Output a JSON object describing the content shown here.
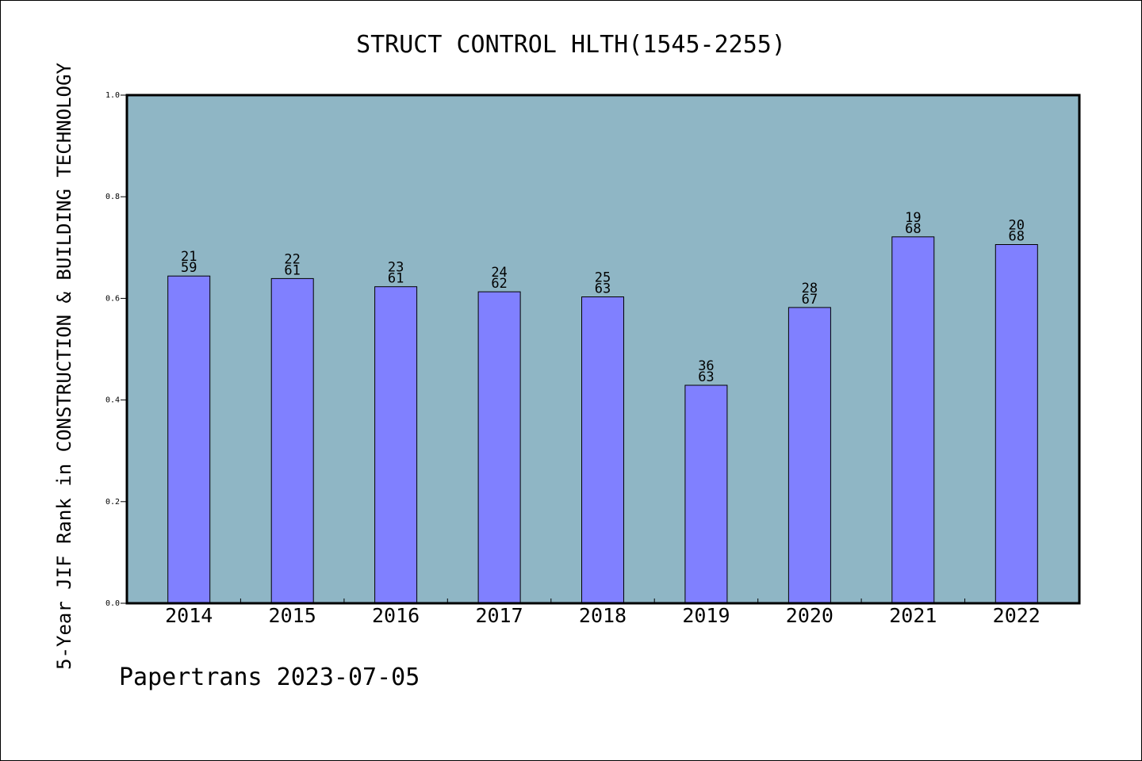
{
  "chart_data": {
    "type": "bar",
    "title": "STRUCT CONTROL HLTH(1545-2255)",
    "xlabel": "",
    "ylabel": "5-Year JIF Rank in CONSTRUCTION & BUILDING TECHNOLOGY",
    "categories": [
      "2014",
      "2015",
      "2016",
      "2017",
      "2018",
      "2019",
      "2020",
      "2021",
      "2022"
    ],
    "values": [
      0.644,
      0.639,
      0.623,
      0.613,
      0.603,
      0.429,
      0.582,
      0.721,
      0.706
    ],
    "annotations": [
      {
        "rank": "21",
        "total": "59"
      },
      {
        "rank": "22",
        "total": "61"
      },
      {
        "rank": "23",
        "total": "61"
      },
      {
        "rank": "24",
        "total": "62"
      },
      {
        "rank": "25",
        "total": "63"
      },
      {
        "rank": "36",
        "total": "63"
      },
      {
        "rank": "28",
        "total": "67"
      },
      {
        "rank": "19",
        "total": "68"
      },
      {
        "rank": "20",
        "total": "68"
      }
    ],
    "ylim": [
      0,
      1.0
    ],
    "yticks": [
      "0.0",
      "0.2",
      "0.4",
      "0.6",
      "0.8",
      "1.0"
    ],
    "grid": false,
    "colors": {
      "plot_background": "#8fb6c5",
      "bar_fill": "#8080ff",
      "bar_edge": "#000000"
    }
  },
  "footer": {
    "credit": "Papertrans 2023-07-05"
  }
}
